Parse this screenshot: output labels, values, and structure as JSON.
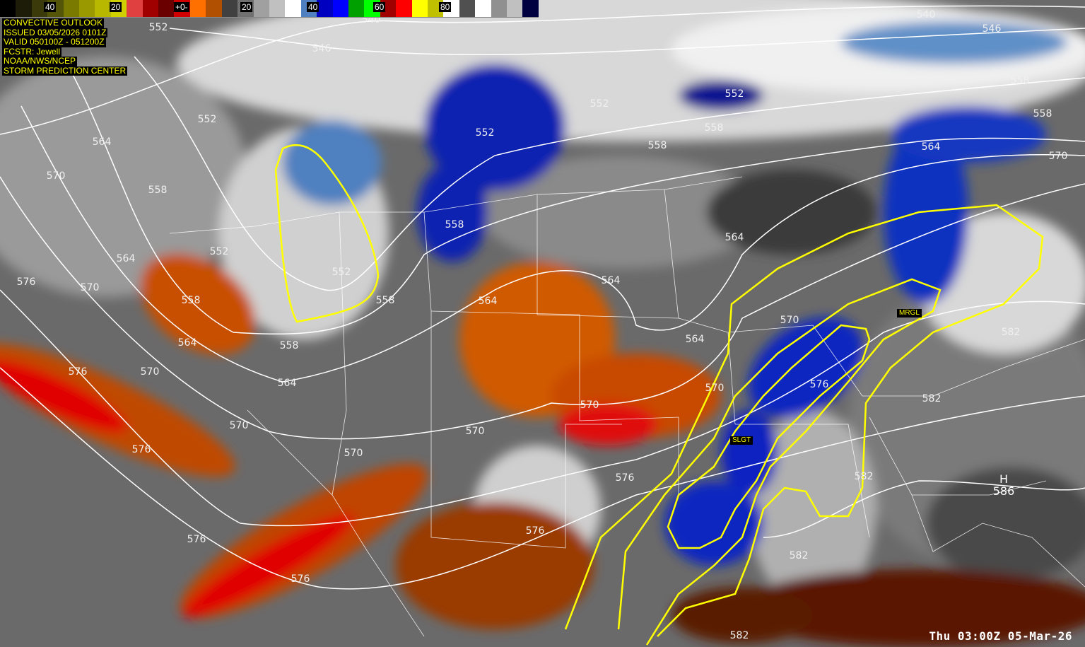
{
  "colorbar": {
    "labels": [
      "40",
      "20",
      "+0-",
      "20",
      "40",
      "60",
      "80"
    ],
    "colors": [
      "#000000",
      "#1c1c08",
      "#3a3a0a",
      "#55550a",
      "#7a7a00",
      "#9a9a00",
      "#b8b800",
      "#d0d000",
      "#e04040",
      "#a00000",
      "#6a0000",
      "#d00000",
      "#ff7000",
      "#b05000",
      "#404040",
      "#707070",
      "#a0a0a0",
      "#c0c0c0",
      "#ffffff",
      "#5080c0",
      "#0000c0",
      "#0000ff",
      "#00a000",
      "#00ff00",
      "#a00000",
      "#ff0000",
      "#ffff00",
      "#c0c000",
      "#ffffff",
      "#505050",
      "#ffffff",
      "#909090",
      "#c0c0c0",
      "#000040"
    ]
  },
  "info": {
    "lines": [
      "CONVECTIVE OUTLOOK",
      "ISSUED 03/05/2026 0101Z",
      "VALID 050100Z - 051200Z",
      "FCSTR: Jewell",
      "NOAA/NWS/NCEP",
      "STORM PREDICTION CENTER"
    ]
  },
  "timestamp": "Thu 03:00Z 05-Mar-26",
  "outlook_labels": {
    "slight": "SLGT",
    "marginal": "MRGL"
  },
  "high_center": {
    "letter": "H",
    "value": "586"
  },
  "contour_labels": [
    "552",
    "546",
    "540",
    "540",
    "546",
    "546",
    "552",
    "552",
    "552",
    "552",
    "552",
    "552",
    "564",
    "570",
    "558",
    "558",
    "558",
    "558",
    "558",
    "564",
    "576",
    "570",
    "564",
    "576",
    "570",
    "564",
    "570",
    "576",
    "570",
    "570",
    "570",
    "564",
    "564",
    "564",
    "564",
    "570",
    "564",
    "570",
    "570",
    "576",
    "582",
    "582",
    "576",
    "576",
    "576",
    "576",
    "582",
    "582",
    "558",
    "558",
    "558",
    "558",
    "582"
  ],
  "colors": {
    "outlook_line": "#ffff00",
    "contour": "#ffffff",
    "label_bg": "#000000",
    "label_text": "#ffff00"
  }
}
